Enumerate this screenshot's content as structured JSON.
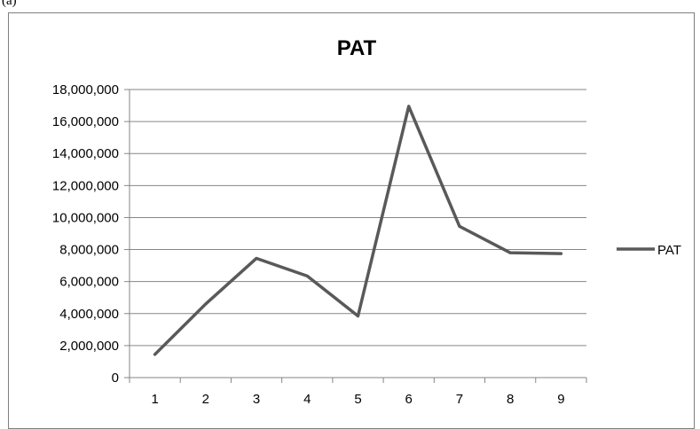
{
  "panel_label": "(a)",
  "chart_data": {
    "type": "line",
    "title": "PAT",
    "xlabel": "",
    "ylabel": "",
    "categories": [
      "1",
      "2",
      "3",
      "4",
      "5",
      "6",
      "7",
      "8",
      "9"
    ],
    "series": [
      {
        "name": "PAT",
        "values": [
          1450000,
          4600000,
          7450000,
          6350000,
          3850000,
          16950000,
          9450000,
          7800000,
          7750000
        ]
      }
    ],
    "ylim": [
      0,
      18000000
    ],
    "ytick_step": 2000000,
    "ytick_labels": [
      "0",
      "2,000,000",
      "4,000,000",
      "6,000,000",
      "8,000,000",
      "10,000,000",
      "12,000,000",
      "14,000,000",
      "16,000,000",
      "18,000,000"
    ],
    "grid": "horizontal",
    "legend_position": "right",
    "colors": {
      "series": "#595959",
      "grid": "#868686",
      "axis": "#868686",
      "frame": "#7f7f7f"
    }
  }
}
